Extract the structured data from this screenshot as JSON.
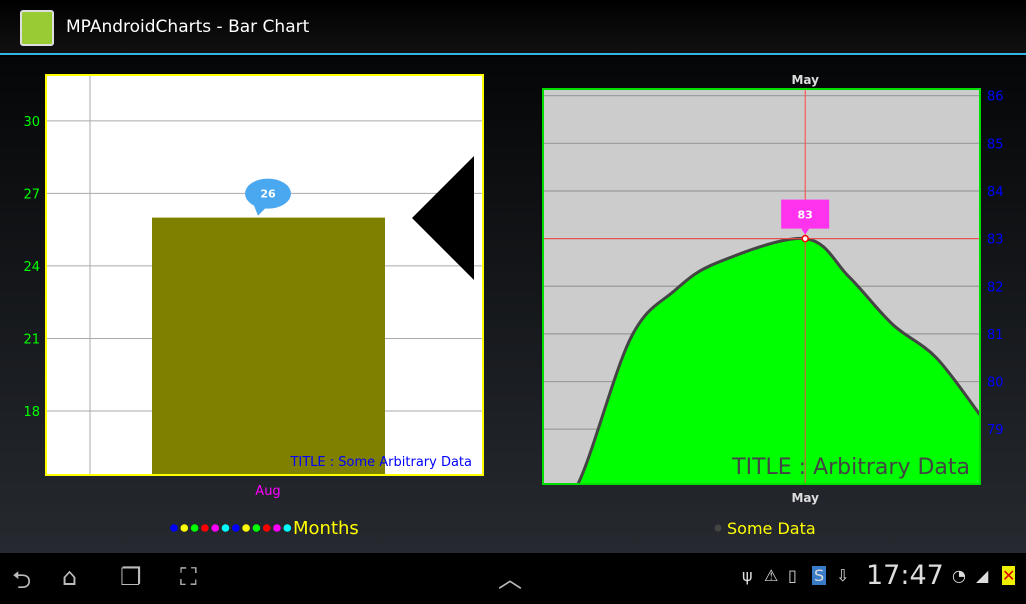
{
  "app": {
    "title": "MPAndroidCharts - Bar Chart",
    "icon": "android-app-icon"
  },
  "chart_data": [
    {
      "type": "bar",
      "categories": [
        "Aug"
      ],
      "values": [
        26
      ],
      "ylim": [
        15.35,
        31.9
      ],
      "yticks": [
        18,
        21,
        24,
        27,
        30
      ],
      "y_tick_color": "#00ff00",
      "x_label_color": "#ff00ff",
      "bar_color": "#808000",
      "border_color": "#ffff00",
      "grid": true,
      "description": "TITLE : Some Arbitrary Data",
      "description_color": "#0000ff",
      "marker_label": "26",
      "marker_color": "#4aa8f0",
      "legend": {
        "label": "Months",
        "position": "bottom-center",
        "colors": [
          "#0000ff",
          "#ffff00",
          "#00ff00",
          "#ff0000",
          "#ff00ff",
          "#00ffff",
          "#0000ff",
          "#ffff00",
          "#00ff00",
          "#ff0000",
          "#ff00ff",
          "#00ffff"
        ],
        "text_color": "#ffff00"
      }
    },
    {
      "type": "area",
      "top_label": "May",
      "bottom_label": "May",
      "x": [
        3.4,
        3.48,
        3.6,
        3.7,
        3.8,
        4.0,
        4.1,
        4.2,
        4.3,
        4.4
      ],
      "y": [
        77.2,
        77.85,
        80.9,
        81.9,
        82.5,
        83,
        82.2,
        81.2,
        80.5,
        79.3
      ],
      "xlim": [
        3.4,
        4.4
      ],
      "ylim": [
        77.85,
        86.14
      ],
      "yticks": [
        79,
        80,
        81,
        82,
        83,
        84,
        85,
        86
      ],
      "y_axis": "right",
      "y_tick_color": "#0000ff",
      "fill_color": "#00ff00",
      "line_color": "#444444",
      "background": "#cccccc",
      "border_color": "#00dd00",
      "grid": true,
      "highlight": {
        "x": 4.0,
        "y": 83,
        "label": "83",
        "color": "#ff4444",
        "marker_color": "#ff33ee"
      },
      "description": "TITLE : Arbitrary Data",
      "legend": {
        "label": "Some Data",
        "position": "bottom-center",
        "colors": [
          "#444444"
        ],
        "text_color": "#ffff00"
      }
    }
  ],
  "navbar": {
    "time": "17:47",
    "icons": [
      "back-icon",
      "home-icon",
      "recent-apps-icon",
      "screenshot-icon",
      "up-chevron-icon",
      "usb-icon",
      "warning-icon",
      "sd-card-icon",
      "skype-icon",
      "download-icon",
      "wifi-icon",
      "signal-icon",
      "battery-icon"
    ]
  }
}
